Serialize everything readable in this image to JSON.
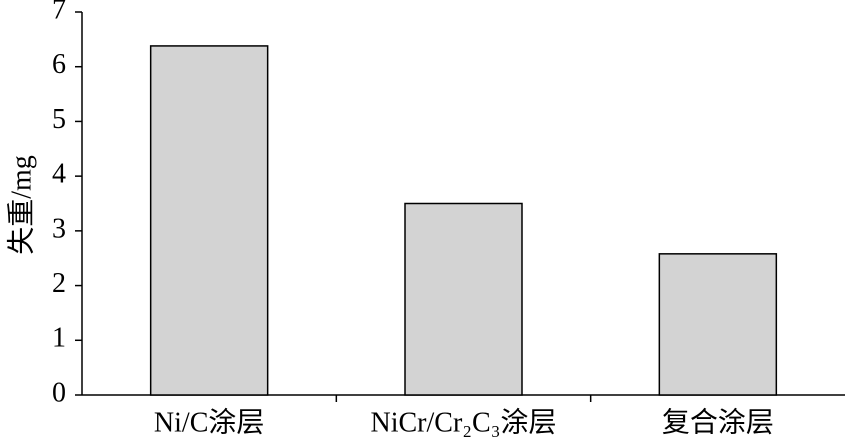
{
  "chart_data": {
    "type": "bar",
    "y_label": "失重/mg",
    "categories": [
      "Ni/C涂层",
      "NiCr/Cr₂C₃涂层",
      "复合涂层"
    ],
    "values": [
      6.38,
      3.5,
      2.58
    ],
    "color": "#d3d3d3",
    "ylim": [
      0,
      7
    ],
    "yticks": [
      0,
      1,
      2,
      3,
      4,
      5,
      6,
      7
    ]
  }
}
